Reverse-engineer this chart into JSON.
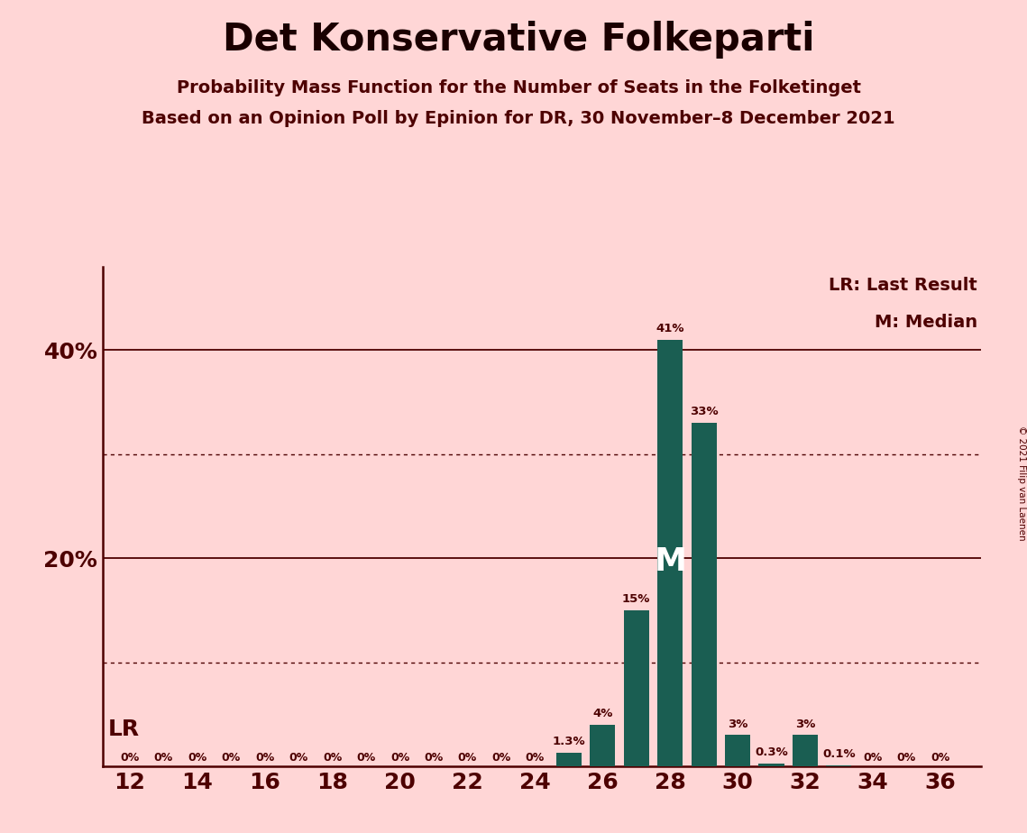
{
  "title": "Det Konservative Folkeparti",
  "subtitle1": "Probability Mass Function for the Number of Seats in the Folketinget",
  "subtitle2": "Based on an Opinion Poll by Epinion for DR, 30 November–8 December 2021",
  "copyright": "© 2021 Filip van Laenen",
  "seats": [
    12,
    13,
    14,
    15,
    16,
    17,
    18,
    19,
    20,
    21,
    22,
    23,
    24,
    25,
    26,
    27,
    28,
    29,
    30,
    31,
    32,
    33,
    34,
    35,
    36
  ],
  "probabilities": [
    0.0,
    0.0,
    0.0,
    0.0,
    0.0,
    0.0,
    0.0,
    0.0,
    0.0,
    0.0,
    0.0,
    0.0,
    0.0,
    1.3,
    4.0,
    15.0,
    41.0,
    33.0,
    3.0,
    0.3,
    3.0,
    0.1,
    0.0,
    0.0,
    0.0
  ],
  "bar_labels": [
    "0%",
    "0%",
    "0%",
    "0%",
    "0%",
    "0%",
    "0%",
    "0%",
    "0%",
    "0%",
    "0%",
    "0%",
    "0%",
    "1.3%",
    "4%",
    "15%",
    "41%",
    "33%",
    "3%",
    "0.3%",
    "3%",
    "0.1%",
    "0%",
    "0%",
    "0%"
  ],
  "bar_color": "#1a5e52",
  "background_color": "#ffd6d6",
  "text_color": "#4d0000",
  "median_seat": 28,
  "lr_seat": 12,
  "ylim": [
    0,
    48
  ],
  "solid_gridlines": [
    20.0,
    40.0
  ],
  "dotted_gridlines": [
    10.0,
    30.0
  ],
  "legend_lr": "LR: Last Result",
  "legend_m": "M: Median",
  "bar_width": 0.75
}
